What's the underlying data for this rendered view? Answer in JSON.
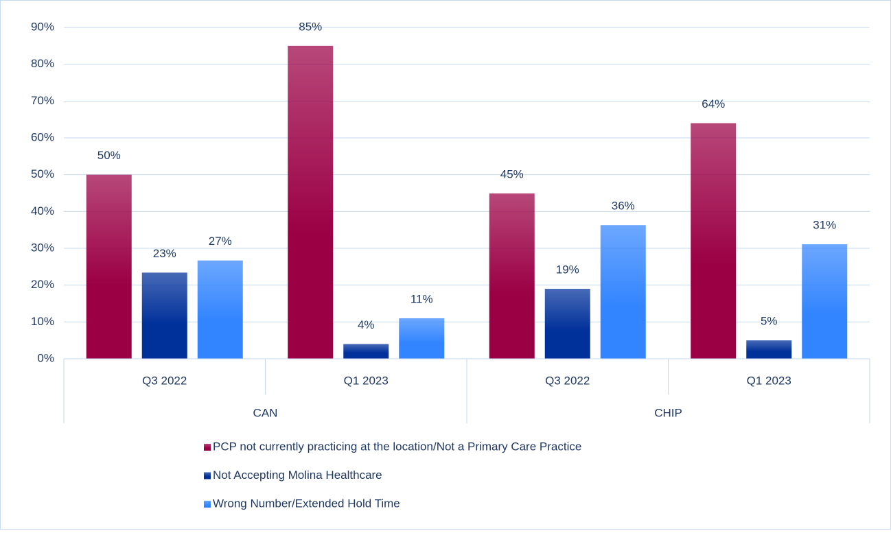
{
  "chart_data": {
    "type": "bar",
    "groups": [
      {
        "name": "CAN",
        "categories": [
          "Q3 2022",
          "Q1 2023"
        ]
      },
      {
        "name": "CHIP",
        "categories": [
          "Q3 2022",
          "Q1 2023"
        ]
      }
    ],
    "series": [
      {
        "name": "PCP not currently practicing at the location/Not a Primary Care Practice",
        "color": "#9b0045",
        "values": [
          50,
          85,
          44.9,
          64
        ],
        "value_labels": [
          "50%",
          "85%",
          "45%",
          "64%"
        ]
      },
      {
        "name": "Not Accepting Molina Healthcare",
        "color": "#00309a",
        "values": [
          23.4,
          4,
          19,
          5
        ],
        "value_labels": [
          "23%",
          "4%",
          "19%",
          "5%"
        ]
      },
      {
        "name": "Wrong Number/Extended Hold Time",
        "color": "#3385ff",
        "values": [
          26.7,
          11,
          36.3,
          31.1
        ],
        "value_labels": [
          "27%",
          "11%",
          "36%",
          "31%"
        ]
      }
    ],
    "ylim": [
      0,
      90
    ],
    "yticks": [
      {
        "value": 0,
        "label": "0%"
      },
      {
        "value": 10,
        "label": "10%"
      },
      {
        "value": 20,
        "label": "20%"
      },
      {
        "value": 30,
        "label": "30%"
      },
      {
        "value": 40,
        "label": "40%"
      },
      {
        "value": 50,
        "label": "50%"
      },
      {
        "value": 60,
        "label": "60%"
      },
      {
        "value": 70,
        "label": "70%"
      },
      {
        "value": 80,
        "label": "80%"
      },
      {
        "value": 90,
        "label": "90%"
      }
    ],
    "grid": true,
    "legend": "bottom"
  }
}
